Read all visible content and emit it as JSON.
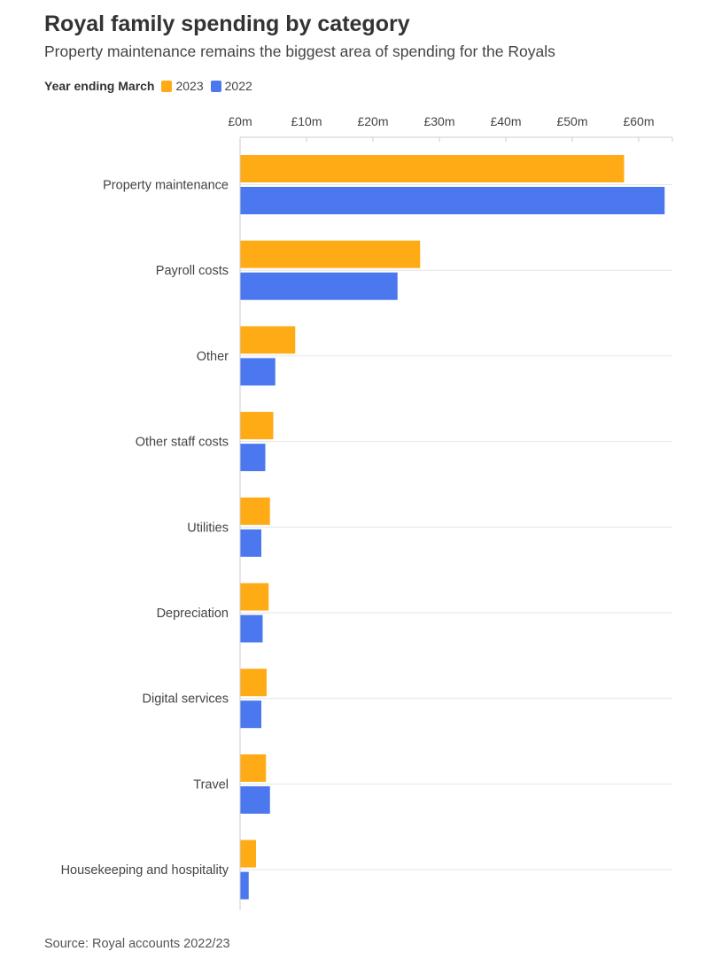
{
  "title": "Royal family spending by category",
  "subtitle": "Property maintenance remains the biggest area of spending for the Royals",
  "legend": {
    "title": "Year ending March",
    "items": [
      {
        "label": "2023",
        "color": "#ffab16"
      },
      {
        "label": "2022",
        "color": "#4b78ee"
      }
    ]
  },
  "source": "Source: Royal accounts 2022/23",
  "chart_data": {
    "type": "bar",
    "orientation": "horizontal",
    "title": "Royal family spending by category",
    "subtitle": "Property maintenance remains the biggest area of spending for the Royals",
    "categories": [
      "Property maintenance",
      "Payroll costs",
      "Other",
      "Other staff costs",
      "Utilities",
      "Depreciation",
      "Digital services",
      "Travel",
      "Housekeeping and hospitality"
    ],
    "series": [
      {
        "name": "2023",
        "color": "#ffab16",
        "values": [
          57.8,
          27.1,
          8.3,
          5.0,
          4.5,
          4.3,
          4.0,
          3.9,
          2.4
        ]
      },
      {
        "name": "2022",
        "color": "#4b78ee",
        "values": [
          63.9,
          23.7,
          5.3,
          3.8,
          3.2,
          3.4,
          3.2,
          4.5,
          1.3
        ]
      }
    ],
    "xlim": [
      0,
      65
    ],
    "x_ticks": [
      0,
      10,
      20,
      30,
      40,
      50,
      60
    ],
    "x_tick_labels": [
      "£0m",
      "£10m",
      "£20m",
      "£30m",
      "£40m",
      "£50m",
      "£60m"
    ],
    "x_axis_position": "top",
    "legend_position": "top-left",
    "grid": true
  }
}
